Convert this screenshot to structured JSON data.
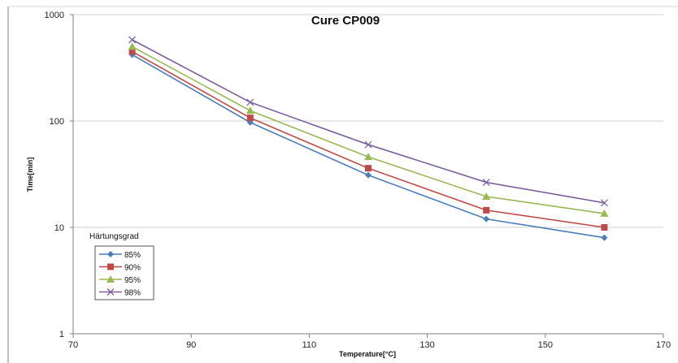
{
  "chart_data": {
    "type": "line",
    "title": "Cure CP009",
    "xlabel": "Temperature[°C]",
    "ylabel": "Time[min]",
    "x_scale": "linear",
    "y_scale": "log",
    "xlim": [
      70,
      170
    ],
    "ylim": [
      1,
      1000
    ],
    "x_ticks": [
      "70",
      "90",
      "110",
      "130",
      "150",
      "170"
    ],
    "y_ticks": [
      "1",
      "10",
      "100",
      "1000"
    ],
    "grid": "horizontal",
    "legend": {
      "title": "Härtungsgrad",
      "position": "left-bottom"
    },
    "x": [
      80,
      100,
      120,
      140,
      160
    ],
    "series": [
      {
        "name": "85%",
        "color": "#4a7ebb",
        "marker": "diamond",
        "values": [
          420,
          97,
          31,
          12,
          8
        ]
      },
      {
        "name": "90%",
        "color": "#be4b48",
        "marker": "square",
        "values": [
          450,
          107,
          36,
          14.5,
          10
        ]
      },
      {
        "name": "95%",
        "color": "#98b954",
        "marker": "triangle",
        "values": [
          500,
          125,
          46,
          19.5,
          13.5
        ]
      },
      {
        "name": "98%",
        "color": "#7d60a0",
        "marker": "x",
        "values": [
          580,
          150,
          60,
          26.5,
          17
        ]
      }
    ]
  }
}
